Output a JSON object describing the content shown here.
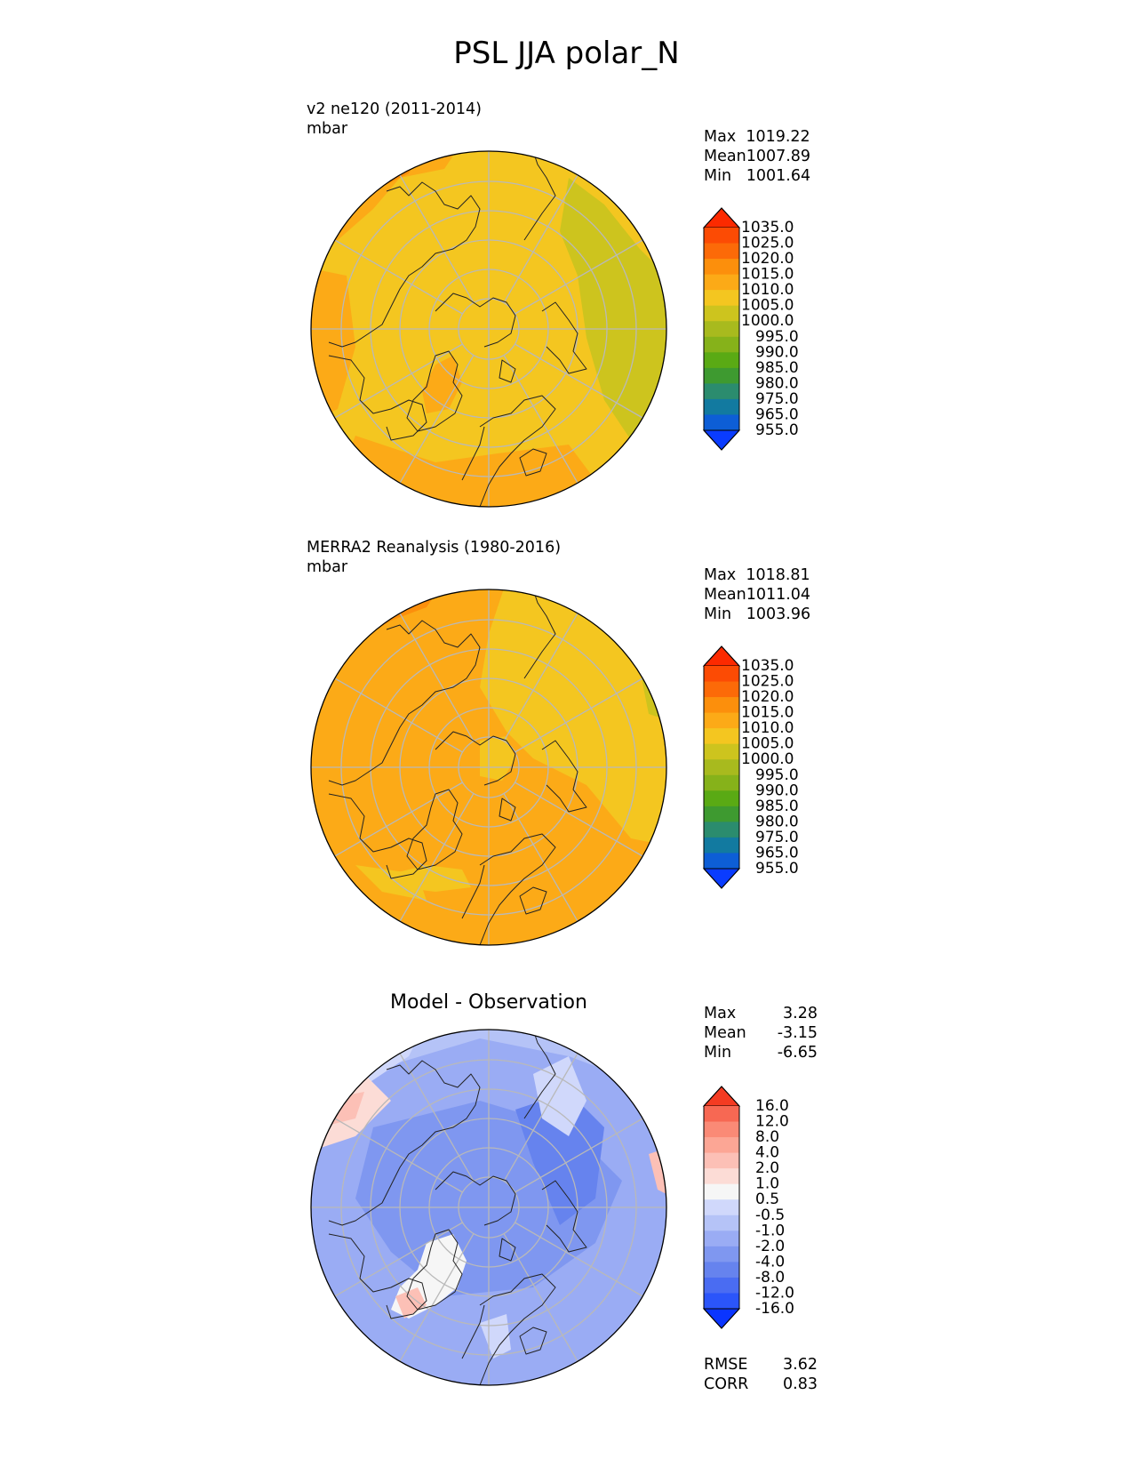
{
  "figure": {
    "title": "PSL JJA polar_N"
  },
  "panels": [
    {
      "id": "test",
      "title": "v2 ne120 (2011-2014)",
      "units": "mbar",
      "stats": [
        {
          "label": "Max",
          "value": "1019.22"
        },
        {
          "label": "Mean",
          "value": "1007.89"
        },
        {
          "label": "Min",
          "value": "1001.64"
        }
      ],
      "colorbar_levels": [
        "1035.0",
        "1025.0",
        "1020.0",
        "1015.0",
        "1010.0",
        "1005.0",
        "1000.0",
        "995.0",
        "990.0",
        "985.0",
        "980.0",
        "975.0",
        "965.0",
        "955.0"
      ]
    },
    {
      "id": "reference",
      "title": "MERRA2 Reanalysis (1980-2016)",
      "units": "mbar",
      "stats": [
        {
          "label": "Max",
          "value": "1018.81"
        },
        {
          "label": "Mean",
          "value": "1011.04"
        },
        {
          "label": "Min",
          "value": "1003.96"
        }
      ],
      "colorbar_levels": [
        "1035.0",
        "1025.0",
        "1020.0",
        "1015.0",
        "1010.0",
        "1005.0",
        "1000.0",
        "995.0",
        "990.0",
        "985.0",
        "980.0",
        "975.0",
        "965.0",
        "955.0"
      ]
    },
    {
      "id": "difference",
      "title": "Model - Observation",
      "stats": [
        {
          "label": "Max",
          "value": "3.28"
        },
        {
          "label": "Mean",
          "value": "-3.15"
        },
        {
          "label": "Min",
          "value": "-6.65"
        }
      ],
      "extra_stats": [
        {
          "label": "RMSE",
          "value": "3.62"
        },
        {
          "label": "CORR",
          "value": "0.83"
        }
      ],
      "colorbar_levels": [
        "16.0",
        "12.0",
        "8.0",
        "4.0",
        "2.0",
        "1.0",
        "0.5",
        "-0.5",
        "-1.0",
        "-2.0",
        "-4.0",
        "-8.0",
        "-12.0",
        "-16.0"
      ]
    }
  ],
  "chart_data": [
    {
      "type": "heatmap",
      "projection": "north polar stereographic",
      "title": "v2 ne120 (2011-2014)",
      "units": "mbar",
      "max": 1019.22,
      "mean": 1007.89,
      "min": 1001.64,
      "levels": [
        955,
        965,
        975,
        980,
        985,
        990,
        995,
        1000,
        1005,
        1010,
        1015,
        1020,
        1025,
        1035
      ],
      "colors": [
        "#0a3cff",
        "#0d5ed6",
        "#127aa0",
        "#2b8c6e",
        "#3e9a30",
        "#5aaa14",
        "#86b21a",
        "#a8ba1e",
        "#cdc41e",
        "#f4c620",
        "#fcaa17",
        "#fc8f0c",
        "#fc6a08",
        "#fc4b04",
        "#fc2a00"
      ]
    },
    {
      "type": "heatmap",
      "projection": "north polar stereographic",
      "title": "MERRA2 Reanalysis (1980-2016)",
      "units": "mbar",
      "max": 1018.81,
      "mean": 1011.04,
      "min": 1003.96,
      "levels": [
        955,
        965,
        975,
        980,
        985,
        990,
        995,
        1000,
        1005,
        1010,
        1015,
        1020,
        1025,
        1035
      ],
      "colors": [
        "#0a3cff",
        "#0d5ed6",
        "#127aa0",
        "#2b8c6e",
        "#3e9a30",
        "#5aaa14",
        "#86b21a",
        "#a8ba1e",
        "#cdc41e",
        "#f4c620",
        "#fcaa17",
        "#fc8f0c",
        "#fc6a08",
        "#fc4b04",
        "#fc2a00"
      ]
    },
    {
      "type": "heatmap",
      "projection": "north polar stereographic",
      "title": "Model - Observation",
      "max": 3.28,
      "mean": -3.15,
      "min": -6.65,
      "rmse": 3.62,
      "corr": 0.83,
      "levels": [
        -16,
        -12,
        -8,
        -4,
        -2,
        -1,
        -0.5,
        0.5,
        1,
        2,
        4,
        8,
        12,
        16
      ],
      "colors": [
        "#0a35ff",
        "#2b55fa",
        "#4a6cf2",
        "#6683ee",
        "#7f97f0",
        "#9aacf4",
        "#b5c3f7",
        "#d0d8fb",
        "#f6f6f6",
        "#fcdcd6",
        "#fcc0b6",
        "#fca695",
        "#fa8a76",
        "#f76853",
        "#f43b22"
      ]
    }
  ]
}
